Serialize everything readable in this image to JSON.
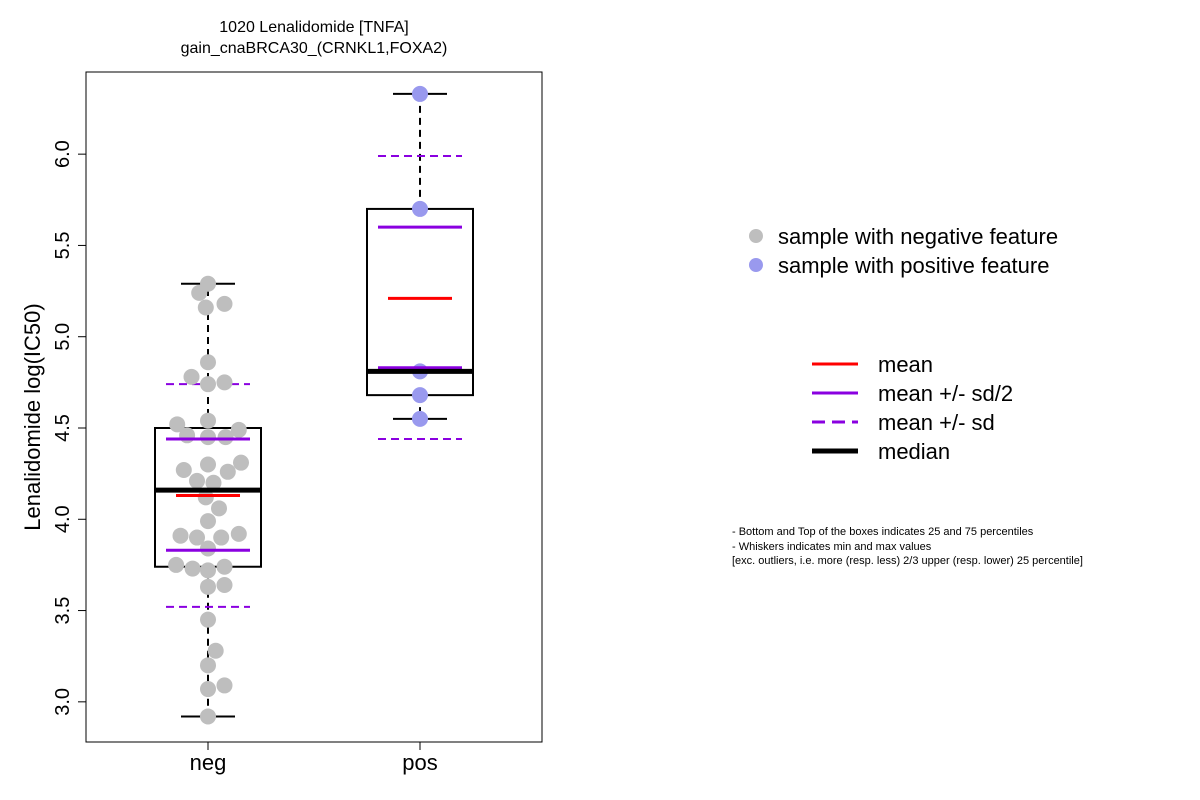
{
  "title": {
    "line1": "1020 Lenalidomide [TNFA]",
    "line2": "gain_cnaBRCA30_(CRNKL1,FOXA2)"
  },
  "colors": {
    "neg_point": "#bebebe",
    "pos_point": "#9999ee",
    "mean": "#ff0000",
    "sd": "#8a00e0",
    "median": "#000000"
  },
  "chart_data": {
    "type": "box",
    "title": "1020 Lenalidomide [TNFA]\ngain_cnaBRCA30_(CRNKL1,FOXA2)",
    "ylabel": "Lenalidomide log(IC50)",
    "xlabel": "",
    "ylim": [
      2.78,
      6.45
    ],
    "yticks": [
      "3.0",
      "3.5",
      "4.0",
      "4.5",
      "5.0",
      "5.5",
      "6.0"
    ],
    "categories": [
      "neg",
      "pos"
    ],
    "groups": [
      {
        "name": "neg",
        "whisker_low": 2.92,
        "q1": 3.74,
        "median": 4.16,
        "q3": 4.5,
        "whisker_high": 5.29,
        "mean": 4.13,
        "mean_minus_half_sd": 3.83,
        "mean_plus_half_sd": 4.44,
        "mean_minus_sd": 3.52,
        "mean_plus_sd": 4.74,
        "points": [
          {
            "x": -0.0,
            "y": 5.29
          },
          {
            "x": -0.08,
            "y": 5.24
          },
          {
            "x": 0.15,
            "y": 5.18
          },
          {
            "x": -0.02,
            "y": 5.16
          },
          {
            "x": 0.0,
            "y": 4.86
          },
          {
            "x": -0.15,
            "y": 4.78
          },
          {
            "x": 0.15,
            "y": 4.75
          },
          {
            "x": 0.0,
            "y": 4.74
          },
          {
            "x": 0.0,
            "y": 4.54
          },
          {
            "x": -0.28,
            "y": 4.52
          },
          {
            "x": 0.28,
            "y": 4.49
          },
          {
            "x": -0.19,
            "y": 4.46
          },
          {
            "x": 0.0,
            "y": 4.45
          },
          {
            "x": 0.16,
            "y": 4.45
          },
          {
            "x": 0.0,
            "y": 4.3
          },
          {
            "x": 0.3,
            "y": 4.31
          },
          {
            "x": -0.22,
            "y": 4.27
          },
          {
            "x": 0.18,
            "y": 4.26
          },
          {
            "x": -0.1,
            "y": 4.21
          },
          {
            "x": 0.05,
            "y": 4.2
          },
          {
            "x": -0.02,
            "y": 4.12
          },
          {
            "x": 0.1,
            "y": 4.06
          },
          {
            "x": 0.0,
            "y": 3.99
          },
          {
            "x": -0.25,
            "y": 3.91
          },
          {
            "x": -0.1,
            "y": 3.9
          },
          {
            "x": 0.12,
            "y": 3.9
          },
          {
            "x": 0.28,
            "y": 3.92
          },
          {
            "x": 0.0,
            "y": 3.84
          },
          {
            "x": -0.29,
            "y": 3.75
          },
          {
            "x": -0.14,
            "y": 3.73
          },
          {
            "x": 0.0,
            "y": 3.72
          },
          {
            "x": 0.15,
            "y": 3.74
          },
          {
            "x": 0.0,
            "y": 3.63
          },
          {
            "x": 0.15,
            "y": 3.64
          },
          {
            "x": 0.0,
            "y": 3.45
          },
          {
            "x": 0.07,
            "y": 3.28
          },
          {
            "x": 0.0,
            "y": 3.2
          },
          {
            "x": 0.15,
            "y": 3.09
          },
          {
            "x": 0.0,
            "y": 3.07
          },
          {
            "x": 0.0,
            "y": 2.92
          }
        ]
      },
      {
        "name": "pos",
        "whisker_low": 4.55,
        "q1": 4.68,
        "median": 4.81,
        "q3": 5.7,
        "whisker_high": 6.33,
        "mean": 5.21,
        "mean_minus_half_sd": 4.83,
        "mean_plus_half_sd": 5.6,
        "mean_minus_sd": 4.44,
        "mean_plus_sd": 5.99,
        "points": [
          {
            "x": 0.0,
            "y": 6.33
          },
          {
            "x": 0.0,
            "y": 5.7
          },
          {
            "x": 0.0,
            "y": 4.81
          },
          {
            "x": 0.0,
            "y": 4.68
          },
          {
            "x": 0.0,
            "y": 4.55
          }
        ]
      }
    ],
    "legend_points": [
      "sample with negative feature",
      "sample with positive feature"
    ],
    "legend_lines": [
      "mean",
      "mean +/- sd/2",
      "mean +/- sd",
      "median"
    ],
    "notes": [
      "- Bottom and Top of the boxes indicates 25 and 75 percentiles",
      "- Whiskers indicates min and max values",
      "[exc. outliers, i.e. more (resp. less) 2/3 upper (resp. lower) 25 percentile]"
    ]
  }
}
